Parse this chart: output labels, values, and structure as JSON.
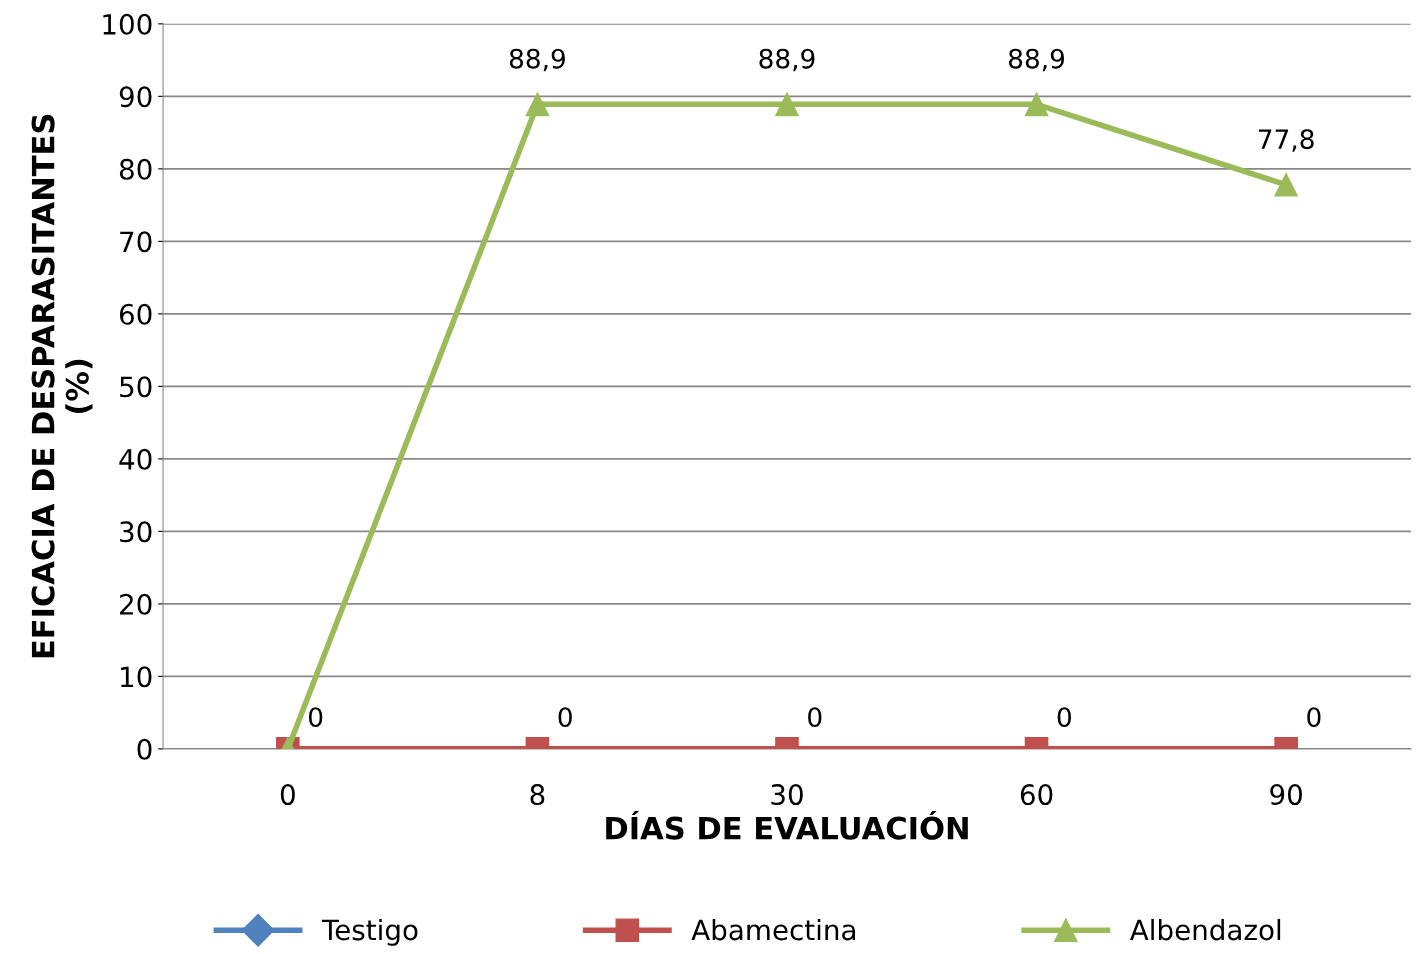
{
  "chart_data": {
    "type": "line",
    "xlabel": "DÍAS DE EVALUACIÓN",
    "ylabel": "EFICACIA DE DESPARASITANTES\n(%)",
    "categories": [
      "0",
      "8",
      "30",
      "60",
      "90"
    ],
    "series": [
      {
        "name": "Testigo",
        "color": "#4f81bd",
        "marker": "diamond",
        "values": [
          null,
          null,
          null,
          null,
          null
        ]
      },
      {
        "name": "Abamectina",
        "color": "#c0504d",
        "marker": "square",
        "values": [
          0,
          0,
          0,
          0,
          0
        ],
        "value_labels": [
          "0",
          "0",
          "0",
          "0",
          "0"
        ]
      },
      {
        "name": "Albendazol",
        "color": "#9bbb59",
        "marker": "triangle",
        "values": [
          0,
          88.9,
          88.9,
          88.9,
          77.8
        ],
        "value_labels": [
          null,
          "88,9",
          "88,9",
          "88,9",
          "77,8"
        ]
      }
    ],
    "ylim": [
      0,
      100
    ],
    "yticks": [
      0,
      10,
      20,
      30,
      40,
      50,
      60,
      70,
      80,
      90,
      100
    ],
    "grid": "y",
    "legend": "bottom",
    "line_style": "solid"
  }
}
